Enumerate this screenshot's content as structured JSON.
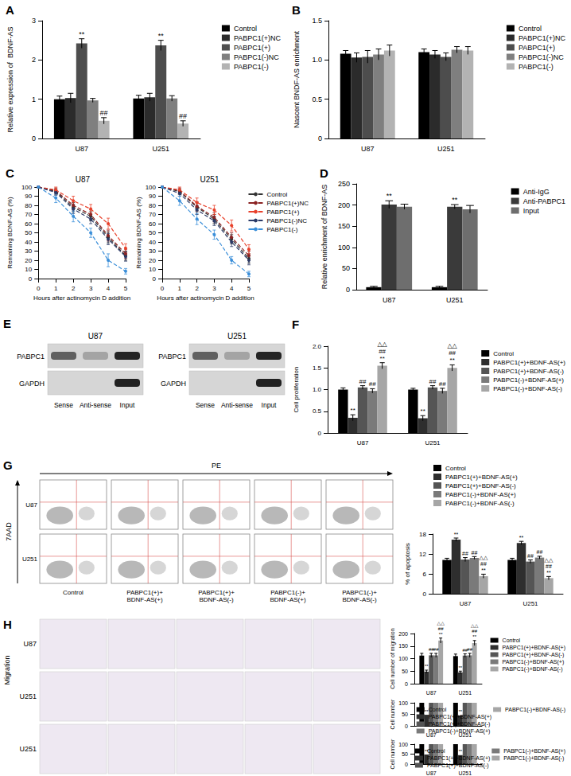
{
  "chart_data": [
    {
      "type": "bar",
      "title": "A",
      "ylabel": "Relative expression of  BDNF-AS",
      "categories": [
        "U87",
        "U251"
      ],
      "ylim": [
        0,
        3
      ],
      "yticks": [
        0,
        1,
        2,
        3
      ],
      "grid": false,
      "legend": "right",
      "series": [
        {
          "name": "Control",
          "color": "#000000",
          "values": [
            1.0,
            1.02
          ],
          "errors": [
            0.08,
            0.08
          ]
        },
        {
          "name": "PABPC1(+)NC",
          "color": "#2b2b2b",
          "values": [
            1.03,
            1.05
          ],
          "errors": [
            0.12,
            0.1
          ]
        },
        {
          "name": "PABPC1(+)",
          "color": "#4d4d4d",
          "values": [
            2.42,
            2.37
          ],
          "errors": [
            0.12,
            0.13
          ],
          "marks": [
            "**",
            "**"
          ]
        },
        {
          "name": "PABPC1(-)NC",
          "color": "#7f7f7f",
          "values": [
            0.97,
            1.02
          ],
          "errors": [
            0.05,
            0.07
          ]
        },
        {
          "name": "PABPC1(-)",
          "color": "#b3b3b3",
          "values": [
            0.45,
            0.38
          ],
          "errors": [
            0.08,
            0.07
          ],
          "marks": [
            "##",
            "##"
          ]
        }
      ]
    },
    {
      "type": "bar",
      "title": "B",
      "ylabel": "Nascent BNDF-AS enrichment",
      "categories": [
        "U87",
        "U251"
      ],
      "ylim": [
        0,
        1.5
      ],
      "yticks": [
        0,
        0.5,
        {
          "value": 1,
          "label": "1.0"
        },
        1.5
      ],
      "grid": false,
      "legend": "right",
      "series": [
        {
          "name": "Control",
          "color": "#000000",
          "values": [
            1.08,
            1.1
          ],
          "errors": [
            0.04,
            0.04
          ]
        },
        {
          "name": "PABPC1(+)NC",
          "color": "#2b2b2b",
          "values": [
            1.03,
            1.07
          ],
          "errors": [
            0.06,
            0.05
          ]
        },
        {
          "name": "PABPC1(+)",
          "color": "#4d4d4d",
          "values": [
            1.04,
            1.04
          ],
          "errors": [
            0.08,
            0.05
          ]
        },
        {
          "name": "PABPC1(-)NC",
          "color": "#7f7f7f",
          "values": [
            1.07,
            1.13
          ],
          "errors": [
            0.07,
            0.04
          ]
        },
        {
          "name": "PABPC1(-)",
          "color": "#b3b3b3",
          "values": [
            1.12,
            1.12
          ],
          "errors": [
            0.07,
            0.05
          ]
        }
      ]
    },
    {
      "type": "line",
      "title": "C",
      "subtitle": "U87",
      "xlabel": "Hours after actinomycin D addition",
      "ylabel": "Remaining BDNF-AS (%)",
      "x": [
        0,
        1,
        2,
        3,
        4,
        5
      ],
      "xlim": [
        0,
        5
      ],
      "xticks": [
        0,
        1,
        2,
        3,
        4,
        5
      ],
      "ylim": [
        0,
        100
      ],
      "yticks": [
        0,
        10,
        20,
        30,
        40,
        50,
        60,
        70,
        80,
        90,
        100
      ],
      "grid": false,
      "series": [
        {
          "name": "Control",
          "color": "#333333",
          "marker": "circle",
          "line_style": "dashed",
          "values": [
            100,
            95,
            78,
            68,
            45,
            25
          ],
          "errors": [
            0,
            3,
            5,
            5,
            6,
            5
          ]
        },
        {
          "name": "PABPC1(+)NC",
          "color": "#8b2323",
          "marker": "circle",
          "line_style": "dashed",
          "values": [
            100,
            96,
            80,
            70,
            47,
            27
          ],
          "errors": [
            0,
            3,
            5,
            5,
            6,
            5
          ]
        },
        {
          "name": "PABPC1(+)",
          "color": "#e8412b",
          "marker": "circle",
          "line_style": "dashed",
          "values": [
            100,
            97,
            85,
            76,
            60,
            33
          ],
          "errors": [
            0,
            3,
            5,
            5,
            6,
            5
          ]
        },
        {
          "name": "PABPC1(-)NC",
          "color": "#2b3a67",
          "marker": "circle",
          "line_style": "dashed",
          "values": [
            100,
            94,
            76,
            65,
            43,
            24
          ],
          "errors": [
            0,
            3,
            5,
            5,
            6,
            5
          ]
        },
        {
          "name": "PABPC1(-)",
          "color": "#3b8fd9",
          "marker": "circle",
          "line_style": "dashed",
          "values": [
            100,
            88,
            68,
            50,
            20,
            8
          ],
          "errors": [
            0,
            5,
            6,
            5,
            7,
            3
          ]
        }
      ]
    },
    {
      "type": "line",
      "subtitle": "U251",
      "xlabel": "Hours after actinomycin D addition",
      "ylabel": "Remaining BDNF-AS (%)",
      "x": [
        0,
        1,
        2,
        3,
        4,
        5
      ],
      "xlim": [
        0,
        5
      ],
      "xticks": [
        0,
        1,
        2,
        3,
        4,
        5
      ],
      "ylim": [
        0,
        100
      ],
      "yticks": [
        0,
        10,
        20,
        30,
        40,
        50,
        60,
        70,
        80,
        90,
        100
      ],
      "grid": false,
      "legend": "right",
      "series": [
        {
          "name": "Control",
          "color": "#333333",
          "marker": "circle",
          "line_style": "dashed",
          "values": [
            100,
            95,
            78,
            65,
            43,
            22
          ],
          "errors": [
            0,
            3,
            5,
            5,
            5,
            5
          ]
        },
        {
          "name": "PABPC1(+)NC",
          "color": "#8b2323",
          "marker": "circle",
          "line_style": "dashed",
          "values": [
            100,
            96,
            79,
            67,
            45,
            25
          ],
          "errors": [
            0,
            3,
            5,
            5,
            5,
            5
          ]
        },
        {
          "name": "PABPC1(+)",
          "color": "#e8412b",
          "marker": "circle",
          "line_style": "dashed",
          "values": [
            100,
            97,
            83,
            75,
            58,
            32
          ],
          "errors": [
            0,
            3,
            5,
            5,
            6,
            5
          ]
        },
        {
          "name": "PABPC1(-)NC",
          "color": "#2b3a67",
          "marker": "circle",
          "line_style": "dashed",
          "values": [
            100,
            93,
            75,
            63,
            40,
            20
          ],
          "errors": [
            0,
            3,
            5,
            5,
            5,
            5
          ]
        },
        {
          "name": "PABPC1(-)",
          "color": "#3b8fd9",
          "marker": "circle",
          "line_style": "dashed",
          "values": [
            100,
            85,
            65,
            48,
            20,
            5
          ],
          "errors": [
            0,
            5,
            6,
            5,
            4,
            3
          ]
        }
      ]
    },
    {
      "type": "bar",
      "title": "D",
      "ylabel": "Relative enrichment of BDNF-AS",
      "categories": [
        "U87",
        "U251"
      ],
      "ylim": [
        0,
        250
      ],
      "yticks": [
        0,
        50,
        100,
        150,
        200,
        250
      ],
      "grid": false,
      "legend": "right",
      "series": [
        {
          "name": "Anti-IgG",
          "color": "#000000",
          "values": [
            6,
            6
          ],
          "errors": [
            2,
            2
          ]
        },
        {
          "name": "Anti-PABPC1",
          "color": "#3a3a3a",
          "values": [
            201,
            196
          ],
          "errors": [
            9,
            5
          ],
          "marks": [
            "**",
            "**"
          ]
        },
        {
          "name": "Input",
          "color": "#6e6e6e",
          "values": [
            196,
            190
          ],
          "errors": [
            6,
            9
          ]
        }
      ]
    },
    {
      "type": "bar",
      "title": "F",
      "ylabel": "Cell proliferation",
      "categories": [
        "U87",
        "U251"
      ],
      "ylim": [
        0,
        2
      ],
      "yticks": [
        0,
        0.5,
        {
          "value": 1,
          "label": "1.0"
        },
        1.5,
        {
          "value": 2,
          "label": "2.0"
        }
      ],
      "grid": false,
      "legend": "right",
      "series": [
        {
          "name": "Control",
          "color": "#000000",
          "values": [
            1.0,
            1.0
          ],
          "errors": [
            0.04,
            0.03
          ]
        },
        {
          "name": "PABPC1(+)+BDNF-AS(+)",
          "color": "#2e2e2e",
          "values": [
            0.35,
            0.34
          ],
          "errors": [
            0.07,
            0.06
          ],
          "marks": [
            "**",
            "**"
          ]
        },
        {
          "name": "PABPC1(+)+BDNF-AS(-)",
          "color": "#555555",
          "values": [
            1.05,
            1.05
          ],
          "errors": [
            0.04,
            0.04
          ],
          "marks": [
            "##",
            "##"
          ]
        },
        {
          "name": "PABPC1(-)+BDNF-AS(+)",
          "color": "#7a7a7a",
          "values": [
            0.97,
            0.97
          ],
          "errors": [
            0.05,
            0.06
          ],
          "marks": [
            "##",
            "##"
          ]
        },
        {
          "name": "PABPC1(-)+BDNF-AS(-)",
          "color": "#a6a6a6",
          "values": [
            1.55,
            1.5
          ],
          "errors": [
            0.07,
            0.07
          ],
          "marks": [
            "△△\n##\n**",
            "△△\n##\n**"
          ]
        }
      ]
    },
    {
      "type": "bar",
      "ylabel": "% of apoptosis",
      "categories": [
        "U87",
        "U251"
      ],
      "ylim": [
        0,
        18
      ],
      "yticks": [
        0,
        6,
        12,
        18
      ],
      "grid": false,
      "legend": "top",
      "series": [
        {
          "name": "Control",
          "color": "#000000",
          "values": [
            10.2,
            10.2
          ],
          "errors": [
            0.5,
            0.5
          ]
        },
        {
          "name": "PABPC1(+)+BDNF-AS(+)",
          "color": "#2e2e2e",
          "values": [
            16.3,
            15.3
          ],
          "errors": [
            0.5,
            0.5
          ],
          "marks": [
            "**",
            "**"
          ]
        },
        {
          "name": "PABPC1(+)+BDNF-AS(-)",
          "color": "#555555",
          "values": [
            10.3,
            9.7
          ],
          "errors": [
            0.6,
            0.5
          ],
          "marks": [
            "##",
            "##"
          ]
        },
        {
          "name": "PABPC1(-)+BDNF-AS(+)",
          "color": "#7a7a7a",
          "values": [
            10.8,
            10.9
          ],
          "errors": [
            0.4,
            0.4
          ],
          "marks": [
            "##",
            "##"
          ]
        },
        {
          "name": "PABPC1(-)+BDNF-AS(-)",
          "color": "#a6a6a6",
          "values": [
            5.3,
            4.7
          ],
          "errors": [
            0.6,
            0.5
          ],
          "marks": [
            "△△\n##\n**",
            "△△\n##\n**"
          ]
        }
      ]
    },
    {
      "type": "bar",
      "ylabel": "Cell number of migration",
      "categories": [
        "U87",
        "U251"
      ],
      "ylim": [
        0,
        200
      ],
      "yticks": [
        0,
        50,
        100,
        150,
        200
      ],
      "grid": false,
      "legend": "right",
      "series": [
        {
          "name": "Control",
          "color": "#000000",
          "values": [
            112,
            110
          ],
          "errors": [
            9,
            8
          ]
        },
        {
          "name": "PABPC1(+)+BDNF-AS(+)",
          "color": "#2e2e2e",
          "values": [
            48,
            45
          ],
          "errors": [
            6,
            5
          ],
          "marks": [
            "**",
            "**"
          ]
        },
        {
          "name": "PABPC1(+)+BDNF-AS(-)",
          "color": "#555555",
          "values": [
            113,
            112
          ],
          "errors": [
            8,
            7
          ],
          "marks": [
            "##",
            "##"
          ]
        },
        {
          "name": "PABPC1(-)+BDNF-AS(+)",
          "color": "#7a7a7a",
          "values": [
            113,
            113
          ],
          "errors": [
            8,
            8
          ],
          "marks": [
            "##",
            "##"
          ]
        },
        {
          "name": "PABPC1(-)+BDNF-AS(-)",
          "color": "#a6a6a6",
          "values": [
            172,
            162
          ],
          "errors": [
            10,
            10
          ],
          "marks": [
            "△△\n##\n**",
            "△△\n##\n**"
          ]
        }
      ]
    },
    {
      "type": "bar",
      "ylabel": "Cell number",
      "categories": [
        "U87",
        "U251"
      ],
      "ylim": [
        0,
        100
      ],
      "yticks": [
        0,
        50,
        100
      ],
      "grid": false,
      "legend": "right",
      "series": [
        {
          "name": "Control",
          "color": "#000000",
          "values": [
            100,
            100
          ]
        },
        {
          "name": "PABPC1(+)+BDNF-AS(+)",
          "color": "#2e2e2e",
          "values": [
            48,
            45
          ],
          "marks": [
            "**",
            "**"
          ]
        },
        {
          "name": "PABPC1(+)+BDNF-AS(-)",
          "color": "#555555",
          "values": [
            100,
            100
          ]
        },
        {
          "name": "PABPC1(-)+BDNF-AS(+)",
          "color": "#7a7a7a",
          "values": [
            100,
            100
          ]
        },
        {
          "name": "PABPC1(-)+BDNF-AS(-)",
          "color": "#a6a6a6",
          "values": [
            100,
            100
          ]
        }
      ]
    },
    {
      "type": "bar",
      "ylabel": "Cell number",
      "categories": [
        "U87",
        "U251"
      ],
      "ylim": [
        0,
        100
      ],
      "yticks": [
        0,
        50,
        100
      ],
      "grid": false,
      "legend": "right",
      "series": [
        {
          "name": "Control",
          "color": "#000000",
          "values": [
            100,
            100
          ]
        },
        {
          "name": "PABPC1(+)+BDNF-AS(+)",
          "color": "#2e2e2e",
          "values": [
            48,
            45
          ],
          "marks": [
            "**",
            "**"
          ]
        },
        {
          "name": "PABPC1(+)+BDNF-AS(-)",
          "color": "#555555",
          "values": [
            100,
            100
          ]
        },
        {
          "name": "PABPC1(-)+BDNF-AS(+)",
          "color": "#7a7a7a",
          "values": [
            100,
            100
          ]
        },
        {
          "name": "PABPC1(-)+BDNF-AS(-)",
          "color": "#a6a6a6",
          "values": [
            100,
            100
          ]
        }
      ]
    }
  ],
  "western_blot": {
    "title": "E",
    "panels": [
      {
        "cell": "U87",
        "rows": [
          "PABPC1",
          "GAPDH"
        ],
        "lanes": [
          "Sense",
          "Anti-sense",
          "Input"
        ]
      },
      {
        "cell": "U251",
        "rows": [
          "PABPC1",
          "GAPDH"
        ],
        "lanes": [
          "Sense",
          "Anti-sense",
          "Input"
        ]
      }
    ]
  },
  "flow_cytometry": {
    "title": "G",
    "x_label": "PE",
    "y_label": "7AAD",
    "rows": [
      "U87",
      "U251"
    ],
    "columns": [
      "Control",
      "PABPC1(+)+\nBDNF-AS(+)",
      "PABPC1(+)+\nBDNF-AS(-)",
      "PABPC1(-)+\nBDNF-AS(+)",
      "PABPC1(-)+\nBDNF-AS(-)"
    ]
  },
  "migration_images": {
    "title": "H",
    "label": "Migration",
    "rows": [
      "U87",
      "U251",
      "U251"
    ]
  }
}
